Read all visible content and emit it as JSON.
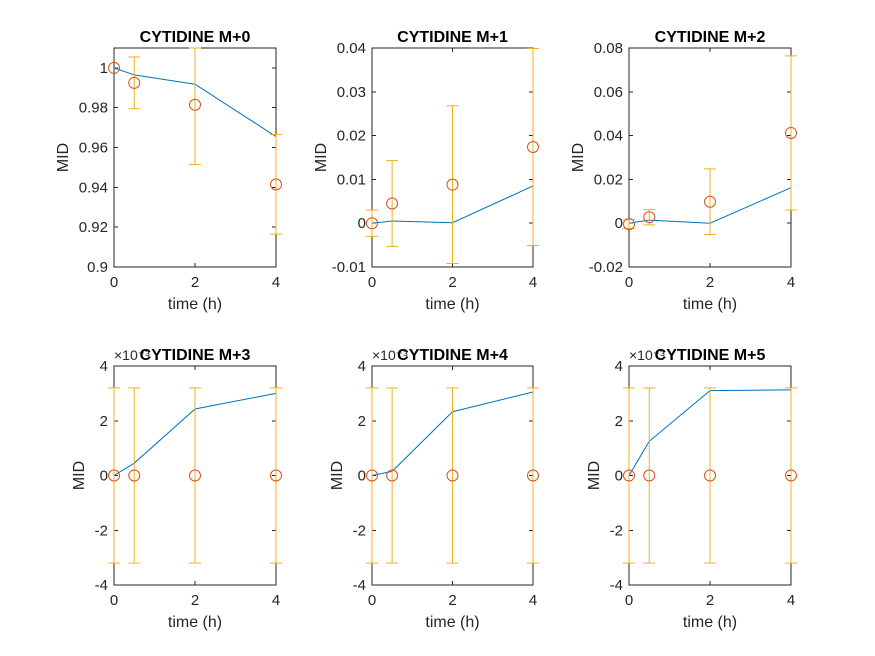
{
  "figure": {
    "background": "#ffffff",
    "line_color": "#0072BD",
    "marker_color": "#D95319",
    "errorbar_color": "#EDB120"
  },
  "chart_data": [
    {
      "type": "line",
      "title": "CYTIDINE M+0",
      "xlabel": "time (h)",
      "ylabel": "MID",
      "xlim": [
        0,
        4
      ],
      "ylim": [
        0.9,
        1.01
      ],
      "xticks": [
        0,
        2,
        4
      ],
      "yticks": [
        0.9,
        0.92,
        0.94,
        0.96,
        0.98,
        1
      ],
      "ytick_labels": [
        "0.9",
        "0.92",
        "0.94",
        "0.96",
        "0.98",
        "1"
      ],
      "exponent_label": "",
      "box": true,
      "grid": false,
      "series": [
        {
          "kind": "line",
          "x": [
            0,
            0.5,
            2,
            4
          ],
          "y": [
            1.0,
            0.9965,
            0.9918,
            0.9655
          ]
        },
        {
          "kind": "errorbar-markers",
          "x": [
            0,
            0.5,
            2,
            4
          ],
          "y": [
            1.0,
            0.9925,
            0.9815,
            0.9415
          ],
          "err": [
            0.0,
            0.013,
            0.03,
            0.025
          ]
        }
      ]
    },
    {
      "type": "line",
      "title": "CYTIDINE M+1",
      "xlabel": "time (h)",
      "ylabel": "MID",
      "xlim": [
        0,
        4
      ],
      "ylim": [
        -0.01,
        0.04
      ],
      "xticks": [
        0,
        2,
        4
      ],
      "yticks": [
        -0.01,
        0,
        0.01,
        0.02,
        0.03,
        0.04
      ],
      "ytick_labels": [
        "-0.01",
        "0",
        "0.01",
        "0.02",
        "0.03",
        "0.04"
      ],
      "exponent_label": "",
      "box": true,
      "grid": false,
      "series": [
        {
          "kind": "line",
          "x": [
            0,
            0.5,
            2,
            4
          ],
          "y": [
            0.0,
            0.0005,
            0.0001,
            0.0085
          ]
        },
        {
          "kind": "errorbar-markers",
          "x": [
            0,
            0.5,
            2,
            4
          ],
          "y": [
            0.0,
            0.0045,
            0.0088,
            0.0174
          ],
          "err": [
            0.003,
            0.0098,
            0.018,
            0.0225
          ]
        }
      ]
    },
    {
      "type": "line",
      "title": "CYTIDINE M+2",
      "xlabel": "time (h)",
      "ylabel": "MID",
      "xlim": [
        0,
        4
      ],
      "ylim": [
        -0.02,
        0.08
      ],
      "xticks": [
        0,
        2,
        4
      ],
      "yticks": [
        -0.02,
        0,
        0.02,
        0.04,
        0.06,
        0.08
      ],
      "ytick_labels": [
        "-0.02",
        "0",
        "0.02",
        "0.04",
        "0.06",
        "0.08"
      ],
      "exponent_label": "",
      "box": true,
      "grid": false,
      "series": [
        {
          "kind": "line",
          "x": [
            0,
            0.5,
            2,
            4
          ],
          "y": [
            0.0,
            0.0014,
            0.0,
            0.0162
          ]
        },
        {
          "kind": "errorbar-markers",
          "x": [
            0,
            0.5,
            2,
            4
          ],
          "y": [
            -0.0004,
            0.0027,
            0.0098,
            0.0412
          ],
          "err": [
            0.002,
            0.0035,
            0.015,
            0.0352
          ]
        }
      ]
    },
    {
      "type": "line",
      "title": "CYTIDINE M+3",
      "xlabel": "time (h)",
      "ylabel": "MID",
      "xlim": [
        0,
        4
      ],
      "ylim": [
        -4,
        4
      ],
      "xticks": [
        0,
        2,
        4
      ],
      "yticks": [
        -4,
        -2,
        0,
        2,
        4
      ],
      "ytick_labels": [
        "-4",
        "-2",
        "0",
        "2",
        "4"
      ],
      "exponent_label": "×10⁻³",
      "box": true,
      "grid": false,
      "series": [
        {
          "kind": "line",
          "x": [
            0,
            0.5,
            2,
            4
          ],
          "y": [
            0.0,
            0.45,
            2.43,
            3.0
          ]
        },
        {
          "kind": "errorbar-markers",
          "x": [
            0,
            0.5,
            2,
            4
          ],
          "y": [
            0.0,
            0.0,
            0.0,
            0.0
          ],
          "err": [
            3.2,
            3.2,
            3.2,
            3.2
          ]
        }
      ]
    },
    {
      "type": "line",
      "title": "CYTIDINE M+4",
      "xlabel": "time (h)",
      "ylabel": "MID",
      "xlim": [
        0,
        4
      ],
      "ylim": [
        -4,
        4
      ],
      "xticks": [
        0,
        2,
        4
      ],
      "yticks": [
        -4,
        -2,
        0,
        2,
        4
      ],
      "ytick_labels": [
        "-4",
        "-2",
        "0",
        "2",
        "4"
      ],
      "exponent_label": "×10⁻³",
      "box": true,
      "grid": false,
      "series": [
        {
          "kind": "line",
          "x": [
            0,
            0.5,
            2,
            4
          ],
          "y": [
            0.0,
            0.15,
            2.33,
            3.05
          ]
        },
        {
          "kind": "errorbar-markers",
          "x": [
            0,
            0.5,
            2,
            4
          ],
          "y": [
            0.0,
            0.0,
            0.0,
            0.0
          ],
          "err": [
            3.2,
            3.2,
            3.2,
            3.2
          ]
        }
      ]
    },
    {
      "type": "line",
      "title": "CYTIDINE M+5",
      "xlabel": "time (h)",
      "ylabel": "MID",
      "xlim": [
        0,
        4
      ],
      "ylim": [
        -4,
        4
      ],
      "xticks": [
        0,
        2,
        4
      ],
      "yticks": [
        -4,
        -2,
        0,
        2,
        4
      ],
      "ytick_labels": [
        "-4",
        "-2",
        "0",
        "2",
        "4"
      ],
      "exponent_label": "×10⁻³",
      "box": true,
      "grid": false,
      "series": [
        {
          "kind": "line",
          "x": [
            0,
            0.5,
            2,
            4
          ],
          "y": [
            0.0,
            1.25,
            3.1,
            3.13
          ]
        },
        {
          "kind": "errorbar-markers",
          "x": [
            0,
            0.5,
            2,
            4
          ],
          "y": [
            0.0,
            0.0,
            0.0,
            0.0
          ],
          "err": [
            3.2,
            3.2,
            3.2,
            3.2
          ]
        }
      ]
    }
  ]
}
